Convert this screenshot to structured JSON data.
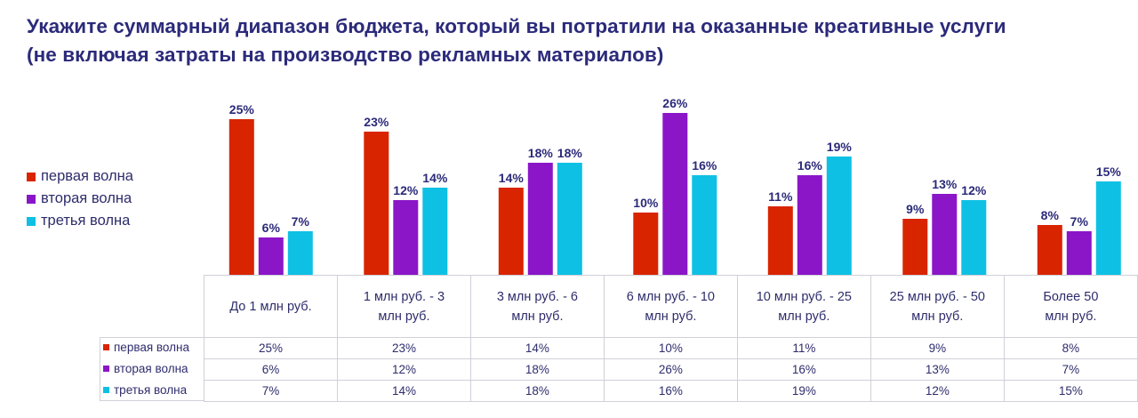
{
  "title_line1": "Укажите суммарный диапазон бюджета, который вы потратили  на оказанные креативные услуги",
  "title_line2": "(не включая затраты на производство рекламных материалов)",
  "colors": {
    "first": "#d92400",
    "second": "#8a16c8",
    "third": "#0ec0e4",
    "title": "#2b2a7a",
    "label": "#2e2d6c"
  },
  "chart_data": {
    "type": "bar",
    "title": "Укажите суммарный диапазон бюджета, который вы потратили  на оказанные креативные услуги (не включая затраты на производство рекламных материалов)",
    "categories": [
      "До 1 млн руб.",
      "1 млн руб. - 3 млн руб.",
      "3 млн руб. - 6 млн руб.",
      "6 млн руб. - 10 млн руб.",
      "10 млн руб. - 25 млн руб.",
      "25 млн руб. - 50 млн руб.",
      "Более 50 млн руб."
    ],
    "category_lines": [
      [
        "До 1 млн руб."
      ],
      [
        "1 млн руб. - 3",
        "млн руб."
      ],
      [
        "3 млн руб. - 6",
        "млн руб."
      ],
      [
        "6 млн руб. - 10",
        "млн руб."
      ],
      [
        "10 млн руб. - 25",
        "млн руб."
      ],
      [
        "25 млн руб. - 50",
        "млн руб."
      ],
      [
        "Более 50",
        "млн руб."
      ]
    ],
    "series": [
      {
        "name": "первая волна",
        "values": [
          25,
          23,
          14,
          10,
          11,
          9,
          8
        ],
        "color": "#d92400"
      },
      {
        "name": "вторая волна",
        "values": [
          6,
          12,
          18,
          26,
          16,
          13,
          7
        ],
        "color": "#8a16c8"
      },
      {
        "name": "третья волна",
        "values": [
          7,
          14,
          18,
          16,
          19,
          12,
          15
        ],
        "color": "#0ec0e4"
      }
    ],
    "unit": "%",
    "ylim": [
      0,
      26
    ],
    "xlabel": "",
    "ylabel": "",
    "legend_position": "left",
    "grid": false
  }
}
